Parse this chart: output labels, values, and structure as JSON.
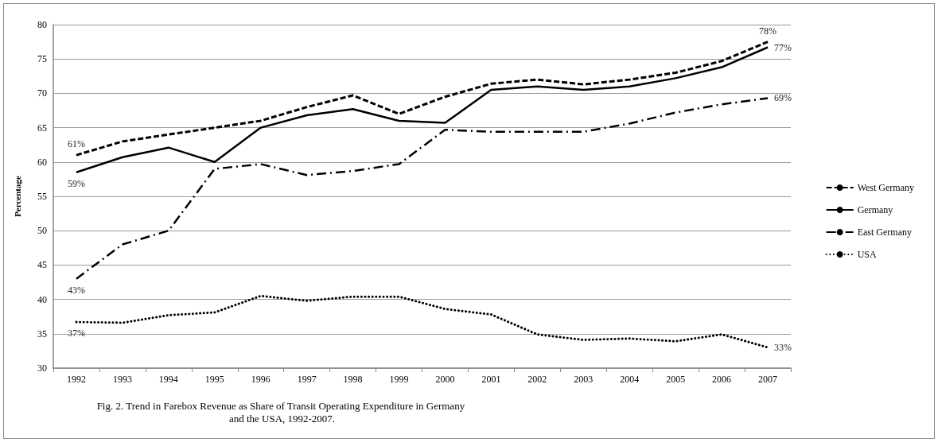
{
  "chart_data": {
    "type": "line",
    "title": "Fig. 2. Trend in Farebox Revenue as Share of Transit Operating Expenditure in Germany and the USA, 1992-2007.",
    "ylabel": "Percentage",
    "categories": [
      "1992",
      "1993",
      "1994",
      "1995",
      "1996",
      "1997",
      "1998",
      "1999",
      "2000",
      "2001",
      "2002",
      "2003",
      "2004",
      "2005",
      "2006",
      "2007"
    ],
    "series": [
      {
        "name": "West Germany",
        "color": "#000000",
        "line_style": "dashed",
        "values": [
          61,
          63,
          64,
          65,
          66,
          68,
          69.7,
          67,
          69.5,
          71.4,
          72,
          71.3,
          72,
          73,
          74.7,
          77.5
        ],
        "value_labels": [
          "61%",
          null,
          null,
          null,
          null,
          null,
          null,
          null,
          null,
          null,
          null,
          null,
          null,
          null,
          null,
          "78%"
        ]
      },
      {
        "name": "Germany",
        "color": "#000000",
        "line_style": "solid",
        "values": [
          58.5,
          60.7,
          62.1,
          60,
          65,
          66.8,
          67.7,
          66,
          65.7,
          70.5,
          71,
          70.5,
          71,
          72.2,
          73.8,
          76.7
        ],
        "value_labels": [
          "59%",
          null,
          null,
          null,
          null,
          null,
          null,
          null,
          null,
          null,
          null,
          null,
          null,
          null,
          null,
          "77%"
        ]
      },
      {
        "name": "East Germany",
        "color": "#000000",
        "line_style": "dashdot",
        "values": [
          43,
          48,
          50,
          59,
          59.7,
          58.1,
          58.7,
          59.7,
          64.7,
          64.4,
          64.4,
          64.4,
          65.6,
          67.2,
          68.4,
          69.3
        ],
        "value_labels": [
          "43%",
          null,
          null,
          null,
          null,
          null,
          null,
          null,
          null,
          null,
          null,
          null,
          null,
          null,
          null,
          "69%"
        ]
      },
      {
        "name": "USA",
        "color": "#000000",
        "line_style": "dotted",
        "values": [
          36.7,
          36.6,
          37.7,
          38.1,
          40.5,
          39.8,
          40.4,
          40.4,
          38.6,
          37.8,
          34.9,
          34.1,
          34.3,
          33.9,
          34.9,
          33
        ],
        "value_labels": [
          "37%",
          null,
          null,
          null,
          null,
          null,
          null,
          null,
          null,
          null,
          null,
          null,
          null,
          null,
          null,
          "33%"
        ]
      }
    ],
    "ylim": [
      30,
      80
    ],
    "yticks": [
      30,
      35,
      40,
      45,
      50,
      55,
      60,
      65,
      70,
      75,
      80
    ],
    "grid": "y",
    "legend": "right",
    "marker": "none"
  }
}
